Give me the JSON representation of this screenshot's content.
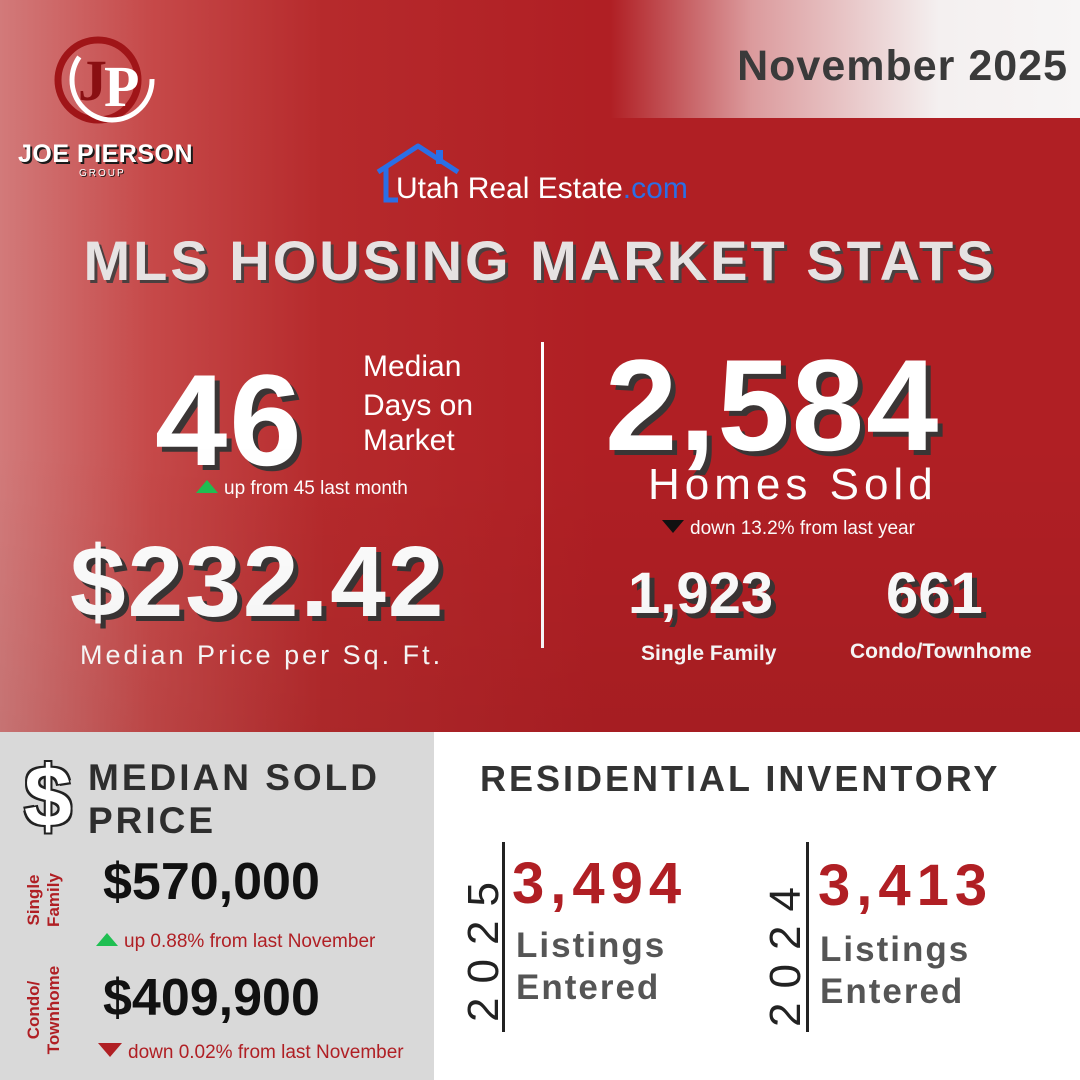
{
  "header": {
    "date": "November 2025",
    "brand_name": "JOE PIERSON",
    "brand_sub": "GROUP",
    "source_name": "Utah Real Estate",
    "source_tld": ".com",
    "title": "MLS HOUSING MARKET STATS"
  },
  "days_on_market": {
    "value": "46",
    "label_line1": "Median",
    "label_line2": "Days on",
    "label_line3": "Market",
    "note": "up from 45 last month"
  },
  "price_per_sqft": {
    "value": "$232.42",
    "label": "Median Price per Sq. Ft."
  },
  "homes_sold": {
    "value": "2,584",
    "label": "Homes Sold",
    "note": "down 13.2% from last year",
    "single_family_value": "1,923",
    "single_family_label": "Single Family",
    "condo_value": "661",
    "condo_label": "Condo/Townhome"
  },
  "median_sold_price": {
    "title_line1": "MEDIAN SOLD",
    "title_line2": "PRICE",
    "single_family_tag_line1": "Single",
    "single_family_tag_line2": "Family",
    "single_family_value": "$570,000",
    "single_family_note": "up 0.88% from last November",
    "condo_tag_line1": "Condo/",
    "condo_tag_line2": "Townhome",
    "condo_value": "$409,900",
    "condo_note": "down 0.02% from last November"
  },
  "residential_inventory": {
    "title": "RESIDENTIAL INVENTORY",
    "years": [
      {
        "year": "2025",
        "value": "3,494",
        "label_line1": "Listings",
        "label_line2": "Entered"
      },
      {
        "year": "2024",
        "value": "3,413",
        "label_line1": "Listings",
        "label_line2": "Entered"
      }
    ]
  },
  "colors": {
    "brand_red": "#b01f24",
    "up_green": "#1fbf52",
    "link_blue": "#2b6fe6"
  }
}
